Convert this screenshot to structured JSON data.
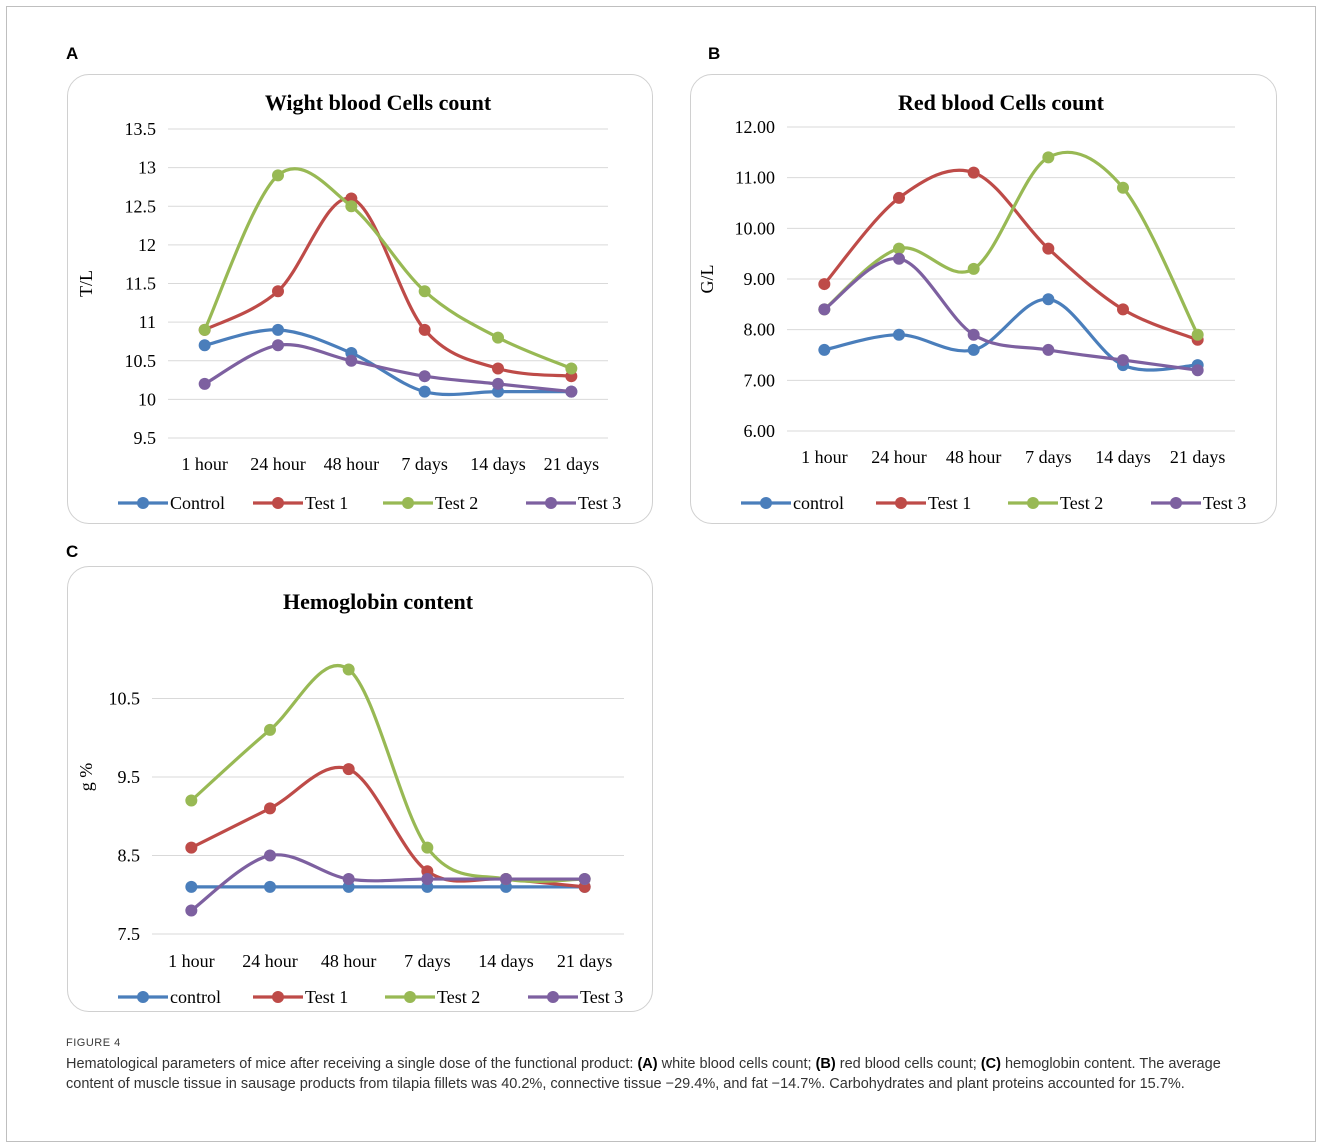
{
  "figure": {
    "label": "FIGURE 4",
    "caption_intro": "Hematological parameters of mice after receiving a single dose of the functional product: ",
    "caption_a_tag": "(A)",
    "caption_a_text": " white blood cells count; ",
    "caption_b_tag": "(B)",
    "caption_b_text": " red blood cells count; ",
    "caption_c_tag": "(C)",
    "caption_c_text": " hemoglobin content. The average content of muscle tissue in sausage products from tilapia fillets was 40.2%, connective tissue −29.4%, and fat −14.7%. Carbohydrates and plant proteins accounted for 15.7%."
  },
  "colors": {
    "control": "#4a7ebb",
    "test1": "#be4b48",
    "test2": "#98b954",
    "test3": "#7d60a0",
    "grid": "#d9d9d9"
  },
  "chart_data": [
    {
      "panel": "A",
      "type": "line",
      "title": "Wight blood Cells count",
      "ylabel": "T/L",
      "categories": [
        "1 hour",
        "24 hour",
        "48 hour",
        "7 days",
        "14 days",
        "21 days"
      ],
      "ylim": [
        9.5,
        13.5
      ],
      "yticks": [
        "9.5",
        "10",
        "10.5",
        "11",
        "11.5",
        "12",
        "12.5",
        "13",
        "13.5"
      ],
      "legend_position": "bottom",
      "grid": true,
      "series": [
        {
          "name": "Control",
          "values": [
            10.7,
            10.9,
            10.6,
            10.1,
            10.1,
            10.1
          ]
        },
        {
          "name": "Test 1",
          "values": [
            10.9,
            11.4,
            12.6,
            10.9,
            10.4,
            10.3
          ]
        },
        {
          "name": "Test 2",
          "values": [
            10.9,
            12.9,
            12.5,
            11.4,
            10.8,
            10.4
          ]
        },
        {
          "name": "Test 3",
          "values": [
            10.2,
            10.7,
            10.5,
            10.3,
            10.2,
            10.1
          ]
        }
      ]
    },
    {
      "panel": "B",
      "type": "line",
      "title": "Red blood Cells count",
      "ylabel": "G/L",
      "categories": [
        "1 hour",
        "24 hour",
        "48 hour",
        "7 days",
        "14 days",
        "21 days"
      ],
      "ylim": [
        6.0,
        12.0
      ],
      "yticks": [
        "6.00",
        "7.00",
        "8.00",
        "9.00",
        "10.00",
        "11.00",
        "12.00"
      ],
      "legend_position": "bottom",
      "grid": true,
      "series": [
        {
          "name": "control",
          "values": [
            7.6,
            7.9,
            7.6,
            8.6,
            7.3,
            7.3
          ]
        },
        {
          "name": "Test 1",
          "values": [
            8.9,
            10.6,
            11.1,
            9.6,
            8.4,
            7.8
          ]
        },
        {
          "name": "Test 2",
          "values": [
            8.4,
            9.6,
            9.2,
            11.4,
            10.8,
            7.9
          ]
        },
        {
          "name": "Test 3",
          "values": [
            8.4,
            9.4,
            7.9,
            7.6,
            7.4,
            7.2
          ]
        }
      ]
    },
    {
      "panel": "C",
      "type": "line",
      "title": "Hemoglobin content",
      "ylabel": "g %",
      "categories": [
        "1 hour",
        "24 hour",
        "48 hour",
        "7 days",
        "14 days",
        "21 days"
      ],
      "ylim": [
        7.5,
        11.5
      ],
      "yticks": [
        "7.5",
        "8.5",
        "9.5",
        "10.5"
      ],
      "legend_position": "bottom",
      "grid": true,
      "series": [
        {
          "name": "control",
          "values": [
            8.1,
            8.1,
            8.1,
            8.1,
            8.1,
            8.1
          ]
        },
        {
          "name": "Test 1",
          "values": [
            8.6,
            9.1,
            9.6,
            8.3,
            8.2,
            8.1
          ]
        },
        {
          "name": "Test 2",
          "values": [
            9.2,
            10.1,
            10.87,
            8.6,
            8.2,
            8.2
          ]
        },
        {
          "name": "Test 3",
          "values": [
            7.8,
            8.5,
            8.2,
            8.2,
            8.2,
            8.2
          ]
        }
      ]
    }
  ]
}
